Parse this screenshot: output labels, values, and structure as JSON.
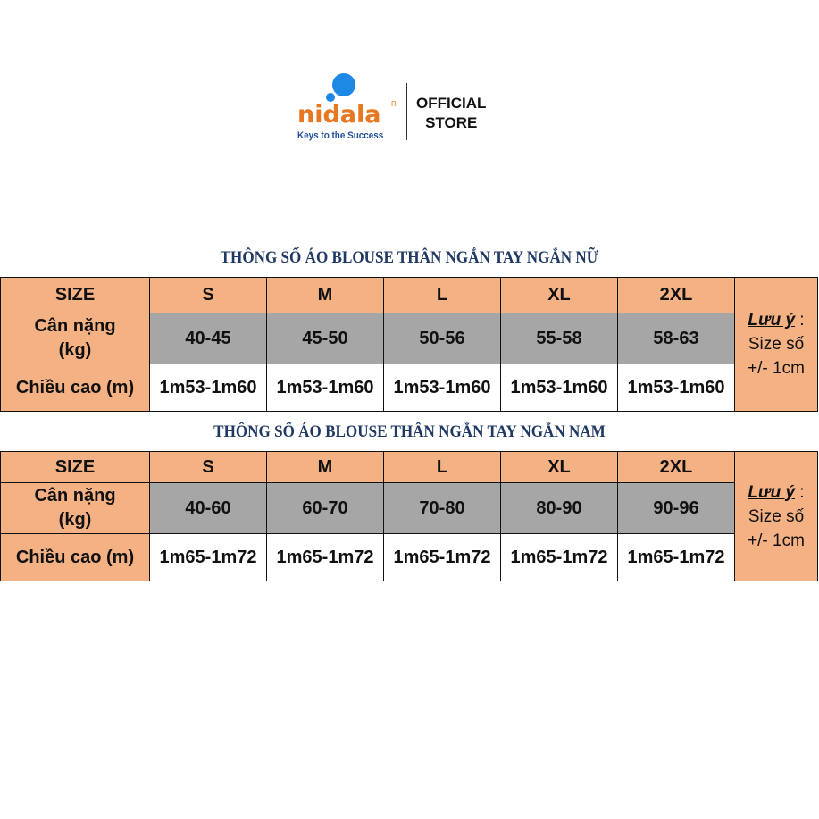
{
  "logo": {
    "brand": "nidala",
    "registered": "R",
    "tagline": "Keys to the Success",
    "colors": {
      "brand": "#e87722",
      "dots": "#1e88e5",
      "tagline": "#1f4e9a"
    }
  },
  "store": {
    "line1": "OFFICIAL",
    "line2": "STORE"
  },
  "colors": {
    "header": "#f4b183",
    "weight_row": "#a6a6a6",
    "title": "#1f3864"
  },
  "tables": [
    {
      "title": "THÔNG SỐ ÁO BLOUSE THÂN NGẮN TAY NGẮN NỮ",
      "size_label": "SIZE",
      "sizes": [
        "S",
        "M",
        "L",
        "XL",
        "2XL"
      ],
      "weight_label_1": "Cân nặng",
      "weight_label_2": "(kg)",
      "weights": [
        "40-45",
        "45-50",
        "50-56",
        "55-58",
        "58-63"
      ],
      "height_label": "Chiều cao (m)",
      "heights": [
        "1m53-1m60",
        "1m53-1m60",
        "1m53-1m60",
        "1m53-1m60",
        "1m53-1m60"
      ],
      "note_title": "Lưu ý",
      "note_colon": " :",
      "note_1": "Size số",
      "note_2": "+/- 1cm"
    },
    {
      "title": "THÔNG SỐ ÁO BLOUSE THÂN NGẮN TAY NGẮN NAM",
      "size_label": "SIZE",
      "sizes": [
        "S",
        "M",
        "L",
        "XL",
        "2XL"
      ],
      "weight_label_1": "Cân nặng",
      "weight_label_2": "(kg)",
      "weights": [
        "40-60",
        "60-70",
        "70-80",
        "80-90",
        "90-96"
      ],
      "height_label": "Chiều cao (m)",
      "heights": [
        "1m65-1m72",
        "1m65-1m72",
        "1m65-1m72",
        "1m65-1m72",
        "1m65-1m72"
      ],
      "note_title": "Lưu ý",
      "note_colon": " :",
      "note_1": "Size số",
      "note_2": "+/- 1cm"
    }
  ]
}
